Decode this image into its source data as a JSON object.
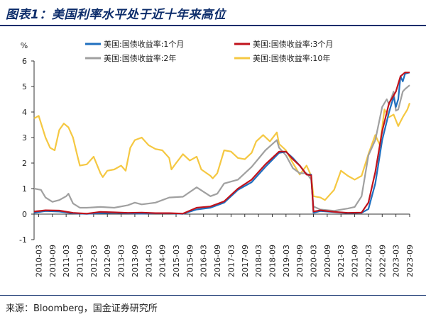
{
  "title": "图表1：美国利率水平处于近十年来高位",
  "source": "来源：Bloomberg，国金证券研究所",
  "chart_data": {
    "type": "line",
    "ylabel": "%",
    "ylim": [
      -1,
      6
    ],
    "yticks": [
      -1,
      0,
      1,
      2,
      3,
      4,
      5,
      6
    ],
    "xlim": [
      "2010-03",
      "2023-09"
    ],
    "xticks": [
      "2010-03",
      "2010-09",
      "2011-03",
      "2011-09",
      "2012-03",
      "2012-09",
      "2013-03",
      "2013-09",
      "2014-03",
      "2014-09",
      "2015-03",
      "2015-09",
      "2016-03",
      "2016-09",
      "2017-03",
      "2017-09",
      "2018-03",
      "2018-09",
      "2019-03",
      "2019-09",
      "2020-03",
      "2020-09",
      "2021-03",
      "2021-09",
      "2022-03",
      "2022-09",
      "2023-03",
      "2023-09"
    ],
    "grid": false,
    "legend_position": "top",
    "series": [
      {
        "name": "美国:国债收益率:1个月",
        "color": "#1f6fbf",
        "points": [
          [
            "2010-01",
            0.05
          ],
          [
            "2010-06",
            0.12
          ],
          [
            "2010-12",
            0.1
          ],
          [
            "2011-06",
            0.03
          ],
          [
            "2011-12",
            0.01
          ],
          [
            "2012-06",
            0.04
          ],
          [
            "2012-12",
            0.05
          ],
          [
            "2013-06",
            0.03
          ],
          [
            "2013-12",
            0.02
          ],
          [
            "2014-06",
            0.03
          ],
          [
            "2014-12",
            0.03
          ],
          [
            "2015-06",
            0.01
          ],
          [
            "2015-12",
            0.18
          ],
          [
            "2016-06",
            0.25
          ],
          [
            "2016-12",
            0.45
          ],
          [
            "2017-06",
            0.95
          ],
          [
            "2017-12",
            1.25
          ],
          [
            "2018-06",
            1.85
          ],
          [
            "2018-12",
            2.4
          ],
          [
            "2019-03",
            2.44
          ],
          [
            "2019-06",
            2.2
          ],
          [
            "2019-09",
            1.9
          ],
          [
            "2019-12",
            1.55
          ],
          [
            "2020-02",
            1.55
          ],
          [
            "2020-03",
            0.05
          ],
          [
            "2020-06",
            0.12
          ],
          [
            "2020-12",
            0.08
          ],
          [
            "2021-06",
            0.04
          ],
          [
            "2021-12",
            0.05
          ],
          [
            "2022-03",
            0.2
          ],
          [
            "2022-06",
            1.2
          ],
          [
            "2022-09",
            2.9
          ],
          [
            "2022-12",
            4.0
          ],
          [
            "2023-02",
            4.6
          ],
          [
            "2023-03",
            4.2
          ],
          [
            "2023-04",
            4.5
          ],
          [
            "2023-05",
            5.4
          ],
          [
            "2023-06",
            5.2
          ],
          [
            "2023-07",
            5.5
          ],
          [
            "2023-09",
            5.55
          ]
        ]
      },
      {
        "name": "美国:国债收益率:3个月",
        "color": "#c0121b",
        "points": [
          [
            "2010-01",
            0.1
          ],
          [
            "2010-06",
            0.15
          ],
          [
            "2010-12",
            0.14
          ],
          [
            "2011-06",
            0.05
          ],
          [
            "2011-12",
            0.02
          ],
          [
            "2012-06",
            0.09
          ],
          [
            "2012-12",
            0.07
          ],
          [
            "2013-06",
            0.05
          ],
          [
            "2013-12",
            0.06
          ],
          [
            "2014-06",
            0.04
          ],
          [
            "2014-12",
            0.04
          ],
          [
            "2015-06",
            0.02
          ],
          [
            "2015-12",
            0.25
          ],
          [
            "2016-06",
            0.3
          ],
          [
            "2016-12",
            0.5
          ],
          [
            "2017-06",
            1.0
          ],
          [
            "2017-12",
            1.35
          ],
          [
            "2018-06",
            1.95
          ],
          [
            "2018-12",
            2.45
          ],
          [
            "2019-03",
            2.45
          ],
          [
            "2019-06",
            2.15
          ],
          [
            "2019-09",
            1.9
          ],
          [
            "2019-12",
            1.55
          ],
          [
            "2020-02",
            1.52
          ],
          [
            "2020-03",
            0.1
          ],
          [
            "2020-06",
            0.15
          ],
          [
            "2020-12",
            0.09
          ],
          [
            "2021-06",
            0.05
          ],
          [
            "2021-12",
            0.06
          ],
          [
            "2022-03",
            0.45
          ],
          [
            "2022-06",
            1.65
          ],
          [
            "2022-09",
            3.25
          ],
          [
            "2022-12",
            4.35
          ],
          [
            "2023-03",
            4.8
          ],
          [
            "2023-05",
            5.4
          ],
          [
            "2023-07",
            5.55
          ],
          [
            "2023-09",
            5.55
          ]
        ]
      },
      {
        "name": "美国:国债收益率:2年",
        "color": "#a0a0a0",
        "points": [
          [
            "2010-01",
            1.0
          ],
          [
            "2010-04",
            0.95
          ],
          [
            "2010-06",
            0.65
          ],
          [
            "2010-09",
            0.48
          ],
          [
            "2010-12",
            0.55
          ],
          [
            "2011-03",
            0.7
          ],
          [
            "2011-04",
            0.8
          ],
          [
            "2011-06",
            0.42
          ],
          [
            "2011-09",
            0.25
          ],
          [
            "2011-12",
            0.25
          ],
          [
            "2012-06",
            0.28
          ],
          [
            "2012-12",
            0.25
          ],
          [
            "2013-06",
            0.35
          ],
          [
            "2013-09",
            0.45
          ],
          [
            "2013-12",
            0.38
          ],
          [
            "2014-06",
            0.45
          ],
          [
            "2014-12",
            0.65
          ],
          [
            "2015-06",
            0.68
          ],
          [
            "2015-12",
            1.05
          ],
          [
            "2016-06",
            0.7
          ],
          [
            "2016-09",
            0.8
          ],
          [
            "2016-12",
            1.2
          ],
          [
            "2017-06",
            1.35
          ],
          [
            "2017-12",
            1.85
          ],
          [
            "2018-06",
            2.5
          ],
          [
            "2018-11",
            2.9
          ],
          [
            "2018-12",
            2.6
          ],
          [
            "2019-03",
            2.3
          ],
          [
            "2019-06",
            1.8
          ],
          [
            "2019-09",
            1.6
          ],
          [
            "2019-12",
            1.6
          ],
          [
            "2020-02",
            1.35
          ],
          [
            "2020-03",
            0.3
          ],
          [
            "2020-06",
            0.18
          ],
          [
            "2020-12",
            0.13
          ],
          [
            "2021-06",
            0.22
          ],
          [
            "2021-09",
            0.28
          ],
          [
            "2021-12",
            0.7
          ],
          [
            "2022-03",
            2.3
          ],
          [
            "2022-06",
            2.9
          ],
          [
            "2022-09",
            4.2
          ],
          [
            "2022-11",
            4.5
          ],
          [
            "2022-12",
            4.3
          ],
          [
            "2023-02",
            4.8
          ],
          [
            "2023-03",
            4.05
          ],
          [
            "2023-04",
            4.1
          ],
          [
            "2023-06",
            4.8
          ],
          [
            "2023-07",
            4.9
          ],
          [
            "2023-09",
            5.05
          ]
        ]
      },
      {
        "name": "美国:国债收益率:10年",
        "color": "#f5c842",
        "points": [
          [
            "2010-01",
            3.75
          ],
          [
            "2010-03",
            3.85
          ],
          [
            "2010-06",
            3.0
          ],
          [
            "2010-08",
            2.6
          ],
          [
            "2010-10",
            2.5
          ],
          [
            "2010-12",
            3.3
          ],
          [
            "2011-02",
            3.55
          ],
          [
            "2011-04",
            3.4
          ],
          [
            "2011-06",
            3.0
          ],
          [
            "2011-08",
            2.25
          ],
          [
            "2011-09",
            1.9
          ],
          [
            "2011-12",
            1.95
          ],
          [
            "2012-03",
            2.25
          ],
          [
            "2012-06",
            1.6
          ],
          [
            "2012-07",
            1.45
          ],
          [
            "2012-09",
            1.7
          ],
          [
            "2012-12",
            1.75
          ],
          [
            "2013-03",
            1.9
          ],
          [
            "2013-05",
            1.7
          ],
          [
            "2013-07",
            2.6
          ],
          [
            "2013-09",
            2.9
          ],
          [
            "2013-12",
            3.0
          ],
          [
            "2014-03",
            2.7
          ],
          [
            "2014-06",
            2.55
          ],
          [
            "2014-09",
            2.5
          ],
          [
            "2014-12",
            2.2
          ],
          [
            "2015-01",
            1.75
          ],
          [
            "2015-03",
            2.0
          ],
          [
            "2015-06",
            2.35
          ],
          [
            "2015-09",
            2.1
          ],
          [
            "2015-12",
            2.25
          ],
          [
            "2016-02",
            1.75
          ],
          [
            "2016-06",
            1.5
          ],
          [
            "2016-07",
            1.4
          ],
          [
            "2016-09",
            1.6
          ],
          [
            "2016-12",
            2.5
          ],
          [
            "2017-03",
            2.45
          ],
          [
            "2017-06",
            2.2
          ],
          [
            "2017-09",
            2.15
          ],
          [
            "2017-12",
            2.4
          ],
          [
            "2018-02",
            2.85
          ],
          [
            "2018-05",
            3.1
          ],
          [
            "2018-08",
            2.85
          ],
          [
            "2018-11",
            3.2
          ],
          [
            "2018-12",
            2.75
          ],
          [
            "2019-03",
            2.5
          ],
          [
            "2019-06",
            2.0
          ],
          [
            "2019-09",
            1.55
          ],
          [
            "2019-12",
            1.9
          ],
          [
            "2020-02",
            1.5
          ],
          [
            "2020-03",
            0.7
          ],
          [
            "2020-06",
            0.65
          ],
          [
            "2020-08",
            0.55
          ],
          [
            "2020-12",
            0.95
          ],
          [
            "2021-03",
            1.7
          ],
          [
            "2021-06",
            1.5
          ],
          [
            "2021-09",
            1.35
          ],
          [
            "2021-12",
            1.5
          ],
          [
            "2022-03",
            2.35
          ],
          [
            "2022-06",
            3.1
          ],
          [
            "2022-08",
            2.7
          ],
          [
            "2022-10",
            4.1
          ],
          [
            "2022-12",
            3.8
          ],
          [
            "2023-02",
            3.9
          ],
          [
            "2023-04",
            3.45
          ],
          [
            "2023-06",
            3.8
          ],
          [
            "2023-08",
            4.1
          ],
          [
            "2023-09",
            4.35
          ]
        ]
      }
    ]
  }
}
